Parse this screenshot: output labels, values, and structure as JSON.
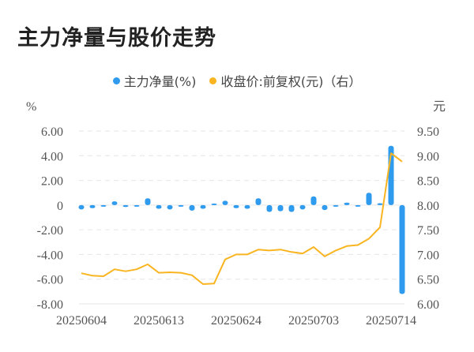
{
  "title": "主力净量与股价走势",
  "legend": [
    {
      "label": "主力净量(%)",
      "color": "#2e9bef"
    },
    {
      "label": "收盘价:前复权(元)（右）",
      "color": "#f9b521"
    }
  ],
  "axes": {
    "left_unit": "%",
    "right_unit": "元",
    "left_ticks": [
      "6.00",
      "4.00",
      "2.00",
      "0",
      "-2.00",
      "-4.00",
      "-6.00",
      "-8.00"
    ],
    "right_ticks": [
      "9.50",
      "9.00",
      "8.50",
      "8.00",
      "7.50",
      "7.00",
      "6.50",
      "6.00"
    ],
    "x_ticks": [
      "20250604",
      "20250613",
      "20250624",
      "20250703",
      "20250714"
    ]
  },
  "chart_data": {
    "type": "bar+line",
    "title": "主力净量与股价走势",
    "xlabel": "",
    "ylabel": "%",
    "ylabel_right": "元",
    "ylim": [
      -8,
      6
    ],
    "ylim_right": [
      6.0,
      9.5
    ],
    "grid": true,
    "legend_position": "top",
    "x_tick_labels": [
      "20250604",
      "20250613",
      "20250624",
      "20250703",
      "20250714"
    ],
    "categories": [
      "20250604",
      "20250605",
      "20250606",
      "20250609",
      "20250610",
      "20250611",
      "20250612",
      "20250613",
      "20250616",
      "20250617",
      "20250618",
      "20250619",
      "20250620",
      "20250623",
      "20250624",
      "20250625",
      "20250626",
      "20250627",
      "20250630",
      "20250701",
      "20250702",
      "20250703",
      "20250704",
      "20250707",
      "20250708",
      "20250709",
      "20250710",
      "20250711",
      "20250714",
      "20250715"
    ],
    "series": [
      {
        "name": "主力净量(%)",
        "type": "bar",
        "axis": "left",
        "color": "#2e9bef",
        "values": [
          -0.35,
          -0.25,
          -0.1,
          0.3,
          -0.15,
          -0.05,
          0.55,
          -0.3,
          -0.35,
          -0.1,
          -0.45,
          -0.3,
          0.05,
          0.35,
          -0.25,
          -0.3,
          0.55,
          -0.55,
          -0.5,
          -0.55,
          -0.35,
          0.7,
          -0.4,
          -0.1,
          0.2,
          -0.1,
          1.0,
          0.15,
          4.8,
          -7.2
        ]
      },
      {
        "name": "收盘价:前复权(元)（右）",
        "type": "line",
        "axis": "right",
        "color": "#f9b521",
        "values": [
          6.62,
          6.57,
          6.56,
          6.7,
          6.66,
          6.7,
          6.8,
          6.63,
          6.64,
          6.63,
          6.58,
          6.4,
          6.41,
          6.9,
          7.0,
          7.0,
          7.1,
          7.08,
          7.1,
          7.05,
          7.02,
          7.15,
          6.96,
          7.08,
          7.17,
          7.19,
          7.32,
          7.55,
          9.05,
          8.88
        ]
      }
    ]
  }
}
